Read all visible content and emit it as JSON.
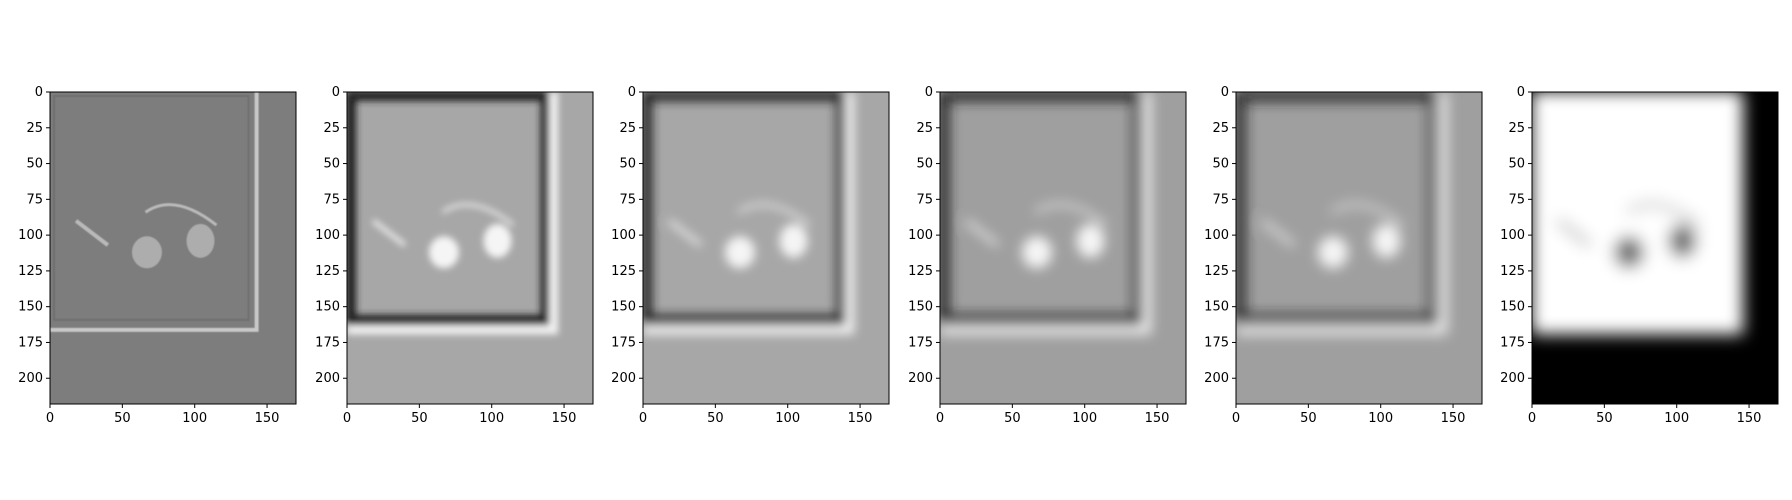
{
  "figure": {
    "panels": [
      {
        "name": "panel-1",
        "palette": {
          "bg": "#7d7d7d",
          "frame": "#6f6f6f",
          "edge": "#c8c8c8",
          "lens": "#b9b9b9"
        }
      },
      {
        "name": "panel-2",
        "palette": {
          "bg": "#a7a7a7",
          "frame": "#222222",
          "edge": "#f2f2f2",
          "lens": "#f5f5f5"
        }
      },
      {
        "name": "panel-3",
        "palette": {
          "bg": "#a7a7a7",
          "frame": "#222222",
          "edge": "#f2f2f2",
          "lens": "#f5f5f5"
        }
      },
      {
        "name": "panel-4",
        "palette": {
          "bg": "#9f9f9f",
          "frame": "#222222",
          "edge": "#eeeeee",
          "lens": "#f5f5f5"
        }
      },
      {
        "name": "panel-5",
        "palette": {
          "bg": "#9f9f9f",
          "frame": "#222222",
          "edge": "#eeeeee",
          "lens": "#f5f5f5"
        }
      },
      {
        "name": "panel-6",
        "palette": {
          "bg": "#000000",
          "frame": "#ffffff",
          "edge": "#ffffff",
          "lens": "#6f6f6f"
        }
      }
    ],
    "xticks": [
      "0",
      "50",
      "100",
      "150"
    ],
    "yticks": [
      "0",
      "25",
      "50",
      "75",
      "100",
      "125",
      "150",
      "175",
      "200"
    ],
    "xlim": [
      0,
      170
    ],
    "ylim": [
      0,
      218
    ]
  }
}
